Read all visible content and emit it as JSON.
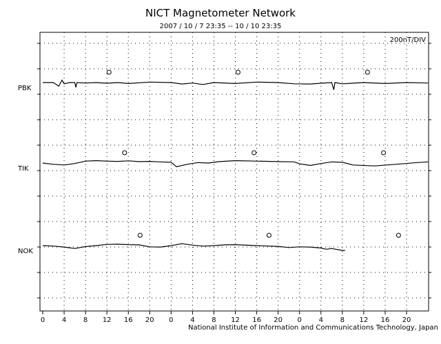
{
  "header": {
    "title": "NICT Magnetometer Network",
    "date_range": "2007 / 10 / 7  23:35 -- 10 / 10  23:35"
  },
  "footer": {
    "credit": "National Institute of Information and Communications Technology, Japan"
  },
  "chart_data": {
    "type": "line",
    "title": "NICT Magnetometer Network",
    "subtitle": "2007 / 10 / 7  23:35 -- 10 / 10  23:35",
    "scale_label": "200nT/DIV",
    "x_tick_labels": [
      "0",
      "4",
      "8",
      "12",
      "16",
      "20",
      "0",
      "4",
      "8",
      "12",
      "16",
      "20",
      "0",
      "4",
      "8",
      "12",
      "16",
      "20"
    ],
    "x_range_hours": [
      0,
      72
    ],
    "grid": true,
    "series": [
      {
        "name": "PBK",
        "midnight_markers_hour": [
          12.4,
          36.5,
          60.7
        ],
        "x": [
          0,
          2,
          3,
          3.6,
          4,
          5,
          6,
          6.2,
          6.4,
          8,
          10,
          12,
          14,
          16,
          20,
          24,
          26,
          28,
          30,
          32,
          36,
          40,
          44,
          47,
          50,
          52,
          54,
          54.4,
          54.6,
          56,
          60,
          64,
          68,
          72
        ],
        "y": [
          0,
          0,
          -15,
          10,
          -5,
          0,
          0,
          -20,
          0,
          -2,
          0,
          -3,
          0,
          -4,
          2,
          0,
          -6,
          -2,
          -8,
          0,
          -4,
          2,
          0,
          -5,
          -6,
          -3,
          0,
          -30,
          0,
          -5,
          0,
          -4,
          0,
          -2
        ]
      },
      {
        "name": "TIK",
        "midnight_markers_hour": [
          15.3,
          39.5,
          63.7
        ],
        "x": [
          0,
          2,
          4,
          6,
          8,
          10,
          12,
          14,
          16,
          18,
          20,
          22,
          24,
          25,
          27,
          29,
          31,
          33,
          36,
          40,
          44,
          47,
          48,
          50,
          52,
          54,
          56,
          58,
          62,
          66,
          70,
          72
        ],
        "y": [
          0,
          -5,
          -8,
          -2,
          8,
          10,
          8,
          7,
          9,
          6,
          7,
          5,
          3,
          -15,
          -5,
          2,
          0,
          6,
          10,
          8,
          6,
          5,
          -3,
          -10,
          -2,
          5,
          3,
          -8,
          -12,
          -5,
          2,
          5
        ]
      },
      {
        "name": "NOK",
        "midnight_markers_hour": [
          18.2,
          42.3,
          66.5
        ],
        "x": [
          0,
          2,
          4,
          6,
          8,
          10,
          12,
          14,
          16,
          18,
          20,
          22,
          24,
          26,
          28,
          30,
          32,
          34,
          36,
          40,
          44,
          46,
          48,
          50,
          52,
          53,
          54,
          56,
          56.5
        ],
        "y": [
          0,
          -2,
          -6,
          -12,
          -4,
          0,
          5,
          6,
          4,
          3,
          -5,
          -6,
          0,
          8,
          2,
          -2,
          0,
          3,
          4,
          0,
          -3,
          -8,
          -5,
          -6,
          -10,
          -15,
          -12,
          -20,
          -20
        ]
      }
    ]
  }
}
